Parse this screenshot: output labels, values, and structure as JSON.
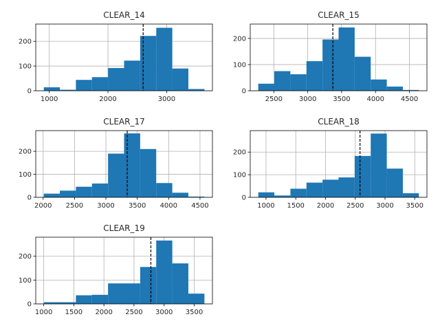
{
  "chart_data": [
    {
      "type": "histogram",
      "title": "CLEAR_14",
      "bin_edges": [
        907,
        1181,
        1454,
        1728,
        2002,
        2275,
        2549,
        2823,
        3096,
        3370,
        3644
      ],
      "counts": [
        14,
        4,
        44,
        55,
        92,
        122,
        222,
        255,
        90,
        7
      ],
      "mean_line": 2600,
      "xlim": [
        770,
        3780
      ],
      "ylim": [
        0,
        270
      ],
      "xticks": [
        1000,
        2000,
        3000
      ],
      "yticks": [
        0,
        100,
        200
      ],
      "grid": true,
      "color": "#1f77b4"
    },
    {
      "type": "histogram",
      "title": "CLEAR_15",
      "bin_edges": [
        2270,
        2507,
        2744,
        2981,
        3218,
        3455,
        3692,
        3929,
        4166,
        4403,
        4640
      ],
      "counts": [
        27,
        75,
        63,
        113,
        196,
        242,
        130,
        43,
        16,
        3
      ],
      "mean_line": 3370,
      "xlim": [
        2152,
        4758
      ],
      "ylim": [
        0,
        255
      ],
      "xticks": [
        2500,
        3000,
        3500,
        4000,
        4500
      ],
      "yticks": [
        0,
        100,
        200
      ],
      "grid": true,
      "color": "#1f77b4"
    },
    {
      "type": "histogram",
      "title": "CLEAR_17",
      "bin_edges": [
        2010,
        2266,
        2522,
        2778,
        3034,
        3290,
        3546,
        3802,
        4058,
        4314,
        4570
      ],
      "counts": [
        16,
        29,
        46,
        60,
        190,
        278,
        210,
        62,
        20,
        3
      ],
      "mean_line": 3340,
      "xlim": [
        1882,
        4698
      ],
      "ylim": [
        0,
        290
      ],
      "xticks": [
        2000,
        2500,
        3000,
        3500,
        4000,
        4500
      ],
      "yticks": [
        0,
        100,
        200
      ],
      "grid": true,
      "color": "#1f77b4"
    },
    {
      "type": "histogram",
      "title": "CLEAR_18",
      "bin_edges": [
        870,
        1140,
        1410,
        1680,
        1950,
        2220,
        2490,
        2760,
        3030,
        3300,
        3570
      ],
      "counts": [
        22,
        8,
        38,
        65,
        78,
        88,
        183,
        282,
        127,
        18
      ],
      "mean_line": 2580,
      "xlim": [
        735,
        3705
      ],
      "ylim": [
        0,
        295
      ],
      "xticks": [
        1000,
        1500,
        2000,
        2500,
        3000,
        3500
      ],
      "yticks": [
        0,
        100,
        200
      ],
      "grid": true,
      "color": "#1f77b4"
    },
    {
      "type": "histogram",
      "title": "CLEAR_19",
      "bin_edges": [
        1000,
        1267,
        1534,
        1801,
        2068,
        2335,
        2602,
        2869,
        3136,
        3403,
        3670
      ],
      "counts": [
        7,
        7,
        36,
        38,
        86,
        86,
        155,
        266,
        170,
        43
      ],
      "mean_line": 2780,
      "xlim": [
        867,
        3803
      ],
      "ylim": [
        0,
        280
      ],
      "xticks": [
        1000,
        1500,
        2000,
        2500,
        3000,
        3500
      ],
      "yticks": [
        0,
        100,
        200
      ],
      "grid": true,
      "color": "#1f77b4"
    }
  ]
}
